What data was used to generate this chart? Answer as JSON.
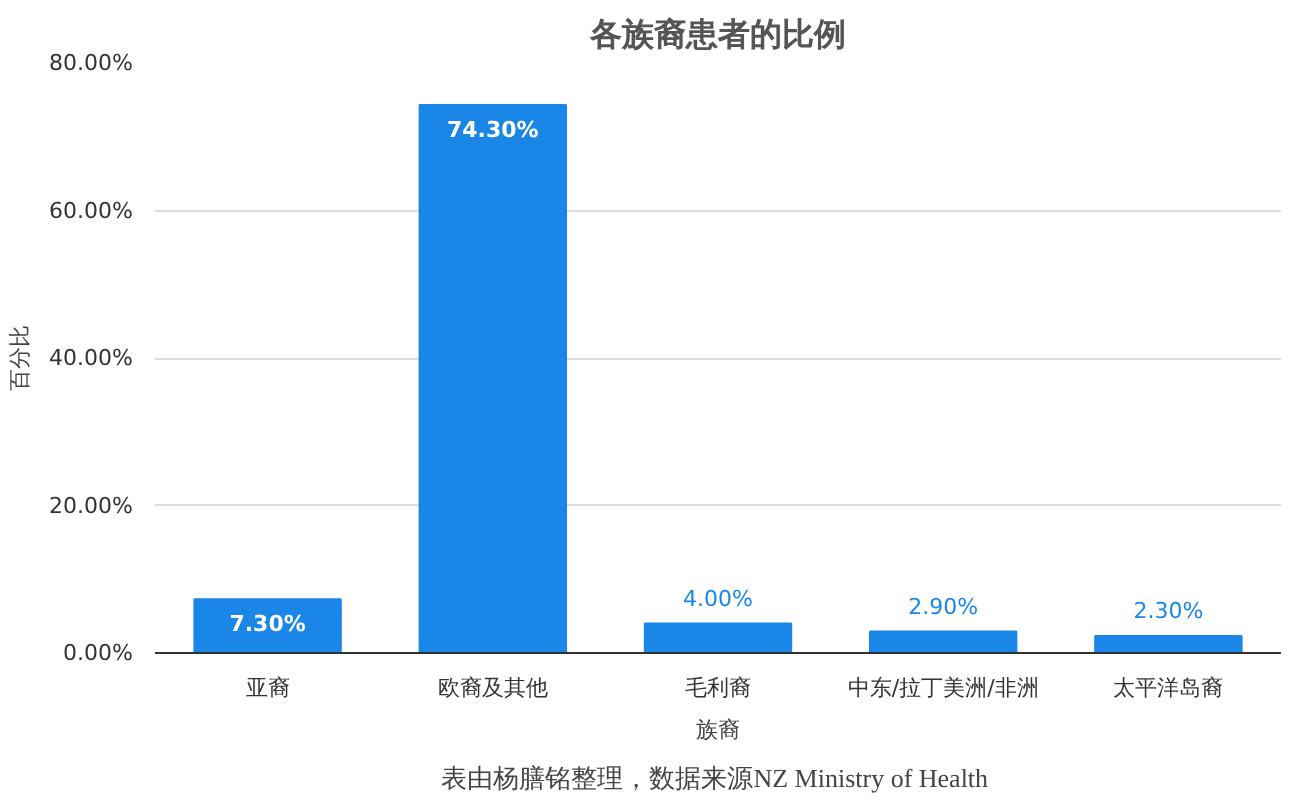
{
  "chart_data": {
    "type": "bar",
    "title": "各族裔患者的比例",
    "xlabel": "族裔",
    "ylabel": "百分比",
    "categories": [
      "亚裔",
      "欧裔及其他",
      "毛利裔",
      "中东/拉丁美洲/非洲",
      "太平洋岛裔"
    ],
    "values": [
      7.3,
      74.3,
      4.0,
      2.9,
      2.3
    ],
    "value_labels": [
      "7.30%",
      "74.30%",
      "4.00%",
      "2.90%",
      "2.30%"
    ],
    "color": "#1a86e8",
    "ylim": [
      0,
      80
    ],
    "yticks": [
      {
        "value": 0,
        "label": "0.00%"
      },
      {
        "value": 20,
        "label": "20.00%"
      },
      {
        "value": 40,
        "label": "40.00%"
      },
      {
        "value": 60,
        "label": "60.00%"
      },
      {
        "value": 80,
        "label": "80.00%"
      }
    ],
    "grid": "y",
    "annotations": [
      "表由杨膳铭整理，数据来源NZ  Ministry of Health"
    ]
  }
}
